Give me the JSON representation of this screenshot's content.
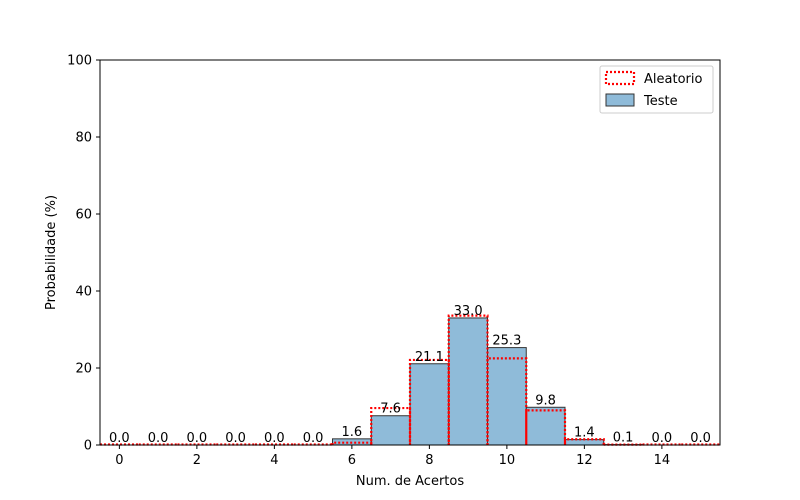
{
  "chart_data": {
    "type": "bar",
    "title": "",
    "xlabel": "Num. de Acertos",
    "ylabel": "Probabilidade (%)",
    "xlim": [
      -0.5,
      15.5
    ],
    "ylim": [
      0,
      100
    ],
    "x_ticks": [
      0,
      2,
      4,
      6,
      8,
      10,
      12,
      14
    ],
    "y_ticks": [
      0,
      20,
      40,
      60,
      80,
      100
    ],
    "grid": false,
    "legend_position": "top-right",
    "categories": [
      0,
      1,
      2,
      3,
      4,
      5,
      6,
      7,
      8,
      9,
      10,
      11,
      12,
      13,
      14,
      15
    ],
    "series": [
      {
        "name": "Aleatorio",
        "style": "step-outline",
        "color": "#ff0000",
        "values": [
          0,
          0,
          0,
          0,
          0,
          0,
          0.6,
          9.6,
          22.1,
          33.6,
          22.5,
          9.0,
          1.5,
          0.1,
          0,
          0
        ]
      },
      {
        "name": "Teste",
        "style": "bars",
        "color": "#1f77b4",
        "values": [
          0.0,
          0.0,
          0.0,
          0.0,
          0.0,
          0.0,
          1.6,
          7.6,
          21.1,
          33.0,
          25.3,
          9.8,
          1.4,
          0.1,
          0.0,
          0.0
        ],
        "labels": [
          "0.0",
          "0.0",
          "0.0",
          "0.0",
          "0.0",
          "0.0",
          "1.6",
          "7.6",
          "21.1",
          "33.0",
          "25.3",
          "9.8",
          "1.4",
          "0.1",
          "0.0",
          "0.0"
        ]
      }
    ]
  }
}
